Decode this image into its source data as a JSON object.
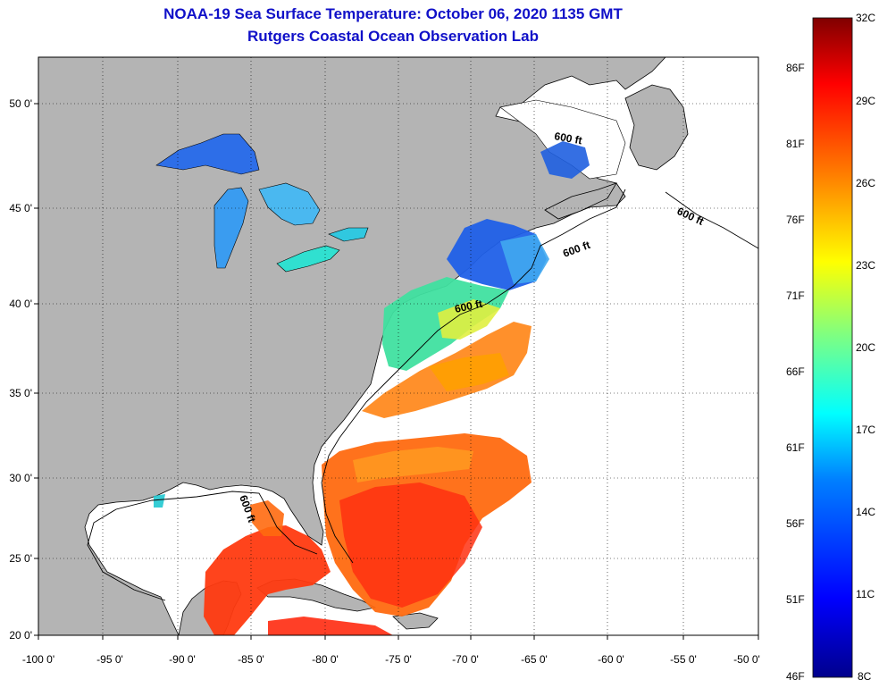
{
  "header": {
    "title": "NOAA-19 Sea Surface Temperature:  October 06, 2020 1135 GMT",
    "subtitle": "Rutgers Coastal Ocean Observation Lab"
  },
  "map": {
    "lon_labels": [
      "-100 0'",
      "-95 0'",
      "-90 0'",
      "-85 0'",
      "-80 0'",
      "-75 0'",
      "-70 0'",
      "-65 0'",
      "-60 0'",
      "-55 0'",
      "-50 0'"
    ],
    "lat_labels": [
      "50 0'",
      "45 0'",
      "40 0'",
      "35 0'",
      "30 0'",
      "25 0'",
      "20 0'"
    ],
    "contour_label": "600 ft",
    "colors": {
      "land": "#b4b4b4",
      "ocean_nodata": "#ffffff"
    }
  },
  "colorbar": {
    "celsius": [
      "32C",
      "29C",
      "26C",
      "23C",
      "20C",
      "17C",
      "14C",
      "11C",
      "8C"
    ],
    "fahrenheit": [
      "86F",
      "81F",
      "76F",
      "71F",
      "66F",
      "61F",
      "56F",
      "51F",
      "46F"
    ],
    "range_c": [
      8,
      32
    ],
    "colors": [
      "#00008c",
      "#0000ff",
      "#0080ff",
      "#00ffff",
      "#80ff80",
      "#ffff00",
      "#ff8000",
      "#ff0000",
      "#800000"
    ]
  }
}
